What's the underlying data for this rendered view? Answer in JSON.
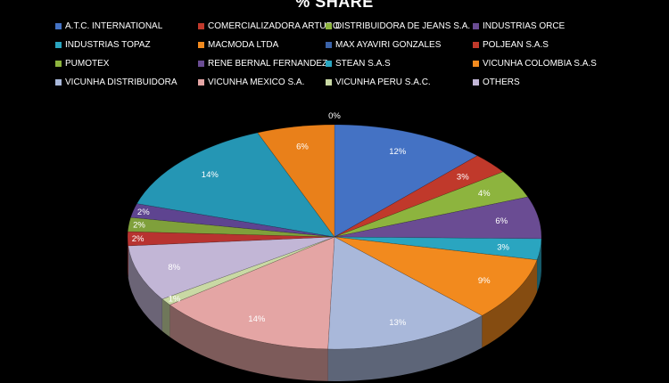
{
  "chart_data": {
    "type": "pie",
    "title": "% SHARE",
    "slices": [
      {
        "label": "A.T.C. INTERNATIONAL",
        "display": "12%",
        "color": "#4472C4"
      },
      {
        "label": "COMERCIALIZADORA ARTURO",
        "display": "3%",
        "color": "#C0392B"
      },
      {
        "label": "DISTRIBUIDORA DE JEANS S.A.",
        "display": "4%",
        "color": "#8DB43E"
      },
      {
        "label": "INDUSTRIAS ORCE",
        "display": "6%",
        "color": "#6A4C93"
      },
      {
        "label": "INDUSTRIAS TOPAZ",
        "display": "3%",
        "color": "#2AA5C0"
      },
      {
        "label": "MACMODA LTDA",
        "display": "9%",
        "color": "#F28A1E"
      },
      {
        "label": "MAX AYAVIRI GONZALES",
        "display": "13%",
        "color": "#A9B8DA"
      },
      {
        "label": "POLJEAN S.A.S",
        "display": "14%",
        "color": "#E4A5A4"
      },
      {
        "label": "PUMOTEX",
        "display": "1%",
        "color": "#C9D9A4"
      },
      {
        "label": "RENE BERNAL FERNANDEZ",
        "display": "8%",
        "color": "#C2B6D6"
      },
      {
        "label": "STEAN S.A.S",
        "display": "0%",
        "color": "#3B63A9"
      },
      {
        "label": "VICUNHA COLOMBIA S.A.S",
        "display": "2%",
        "color": "#B83330"
      },
      {
        "label": "VICUNHA DISTRIBUIDORA",
        "display": "2%",
        "color": "#7FA03B"
      },
      {
        "label": "VICUNHA MEXICO S.A.",
        "display": "2%",
        "color": "#5E4490"
      },
      {
        "label": "VICUNHA PERU S.A.C.",
        "display": "14%",
        "color": "#2596B4"
      },
      {
        "label": "OTHERS",
        "display": "6%",
        "color": "#E9801A"
      }
    ],
    "values": [
      12,
      3,
      4,
      6,
      3,
      9,
      13,
      14,
      1,
      8,
      0,
      2,
      2,
      2,
      14,
      6
    ],
    "legend_position": "top"
  },
  "legend": [
    {
      "label": "A.T.C. INTERNATIONAL",
      "color": "#4472C4"
    },
    {
      "label": "COMERCIALIZADORA ARTURO",
      "color": "#C0392B"
    },
    {
      "label": "DISTRIBUIDORA DE JEANS S.A.",
      "color": "#8DB43E"
    },
    {
      "label": "INDUSTRIAS ORCE",
      "color": "#6A4C93"
    },
    {
      "label": "INDUSTRIAS TOPAZ",
      "color": "#2AA5C0"
    },
    {
      "label": "MACMODA LTDA",
      "color": "#F28A1E"
    },
    {
      "label": "MAX AYAVIRI GONZALES",
      "color": "#3B63A9"
    },
    {
      "label": "POLJEAN S.A.S",
      "color": "#C0392B"
    },
    {
      "label": "PUMOTEX",
      "color": "#8DB43E"
    },
    {
      "label": "RENE BERNAL FERNANDEZ",
      "color": "#6A4C93"
    },
    {
      "label": "STEAN S.A.S",
      "color": "#2AA5C0"
    },
    {
      "label": "VICUNHA COLOMBIA S.A.S",
      "color": "#F28A1E"
    },
    {
      "label": "VICUNHA DISTRIBUIDORA",
      "color": "#A9B8DA"
    },
    {
      "label": "VICUNHA MEXICO S.A.",
      "color": "#E4A5A4"
    },
    {
      "label": "VICUNHA PERU S.A.C.",
      "color": "#C9D9A4"
    },
    {
      "label": "OTHERS",
      "color": "#C2B6D6"
    }
  ]
}
